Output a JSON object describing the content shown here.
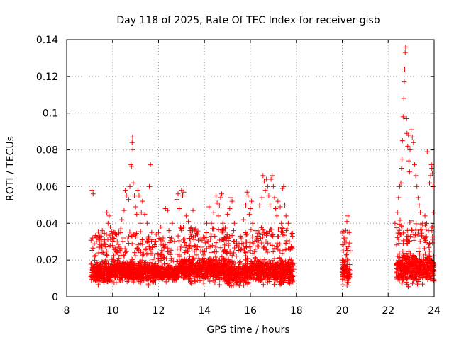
{
  "chart_data": {
    "type": "scatter",
    "title": "Day 118 of 2025, Rate Of TEC Index for receiver gisb",
    "xlabel": "GPS time / hours",
    "ylabel": "ROTI / TECUs",
    "xlim": [
      8,
      24
    ],
    "ylim": [
      0,
      0.14
    ],
    "xticks": [
      8,
      10,
      12,
      14,
      16,
      18,
      20,
      22,
      24
    ],
    "xtick_labels": [
      "8",
      "10",
      "12",
      "14",
      "16",
      "18",
      "20",
      "22",
      "24"
    ],
    "yticks": [
      0,
      0.02,
      0.04,
      0.06,
      0.08,
      0.1,
      0.12,
      0.14
    ],
    "ytick_labels": [
      "0",
      "0.02",
      "0.04",
      "0.06",
      "0.08",
      "0.1",
      "0.12",
      "0.14"
    ],
    "grid": true,
    "marker": "plus",
    "color": "#ff0000",
    "series": [
      {
        "name": "ROTI",
        "points": [
          [
            9.1,
            0.058
          ],
          [
            9.15,
            0.056
          ],
          [
            9.12,
            0.032
          ],
          [
            9.2,
            0.022
          ],
          [
            9.3,
            0.03
          ],
          [
            9.4,
            0.027
          ],
          [
            9.55,
            0.036
          ],
          [
            9.65,
            0.03
          ],
          [
            9.75,
            0.046
          ],
          [
            9.8,
            0.04
          ],
          [
            9.85,
            0.044
          ],
          [
            9.9,
            0.038
          ],
          [
            10.05,
            0.035
          ],
          [
            10.2,
            0.03
          ],
          [
            10.35,
            0.037
          ],
          [
            10.4,
            0.042
          ],
          [
            10.5,
            0.047
          ],
          [
            10.55,
            0.058
          ],
          [
            10.6,
            0.055
          ],
          [
            10.7,
            0.053
          ],
          [
            10.75,
            0.06
          ],
          [
            10.8,
            0.072
          ],
          [
            10.82,
            0.071
          ],
          [
            10.85,
            0.084
          ],
          [
            10.87,
            0.087
          ],
          [
            10.88,
            0.08
          ],
          [
            10.9,
            0.062
          ],
          [
            10.95,
            0.055
          ],
          [
            11.0,
            0.049
          ],
          [
            11.05,
            0.045
          ],
          [
            11.1,
            0.058
          ],
          [
            11.15,
            0.055
          ],
          [
            11.2,
            0.04
          ],
          [
            11.25,
            0.046
          ],
          [
            11.3,
            0.052
          ],
          [
            11.4,
            0.045
          ],
          [
            11.5,
            0.04
          ],
          [
            11.55,
            0.032
          ],
          [
            11.6,
            0.06
          ],
          [
            11.65,
            0.072
          ],
          [
            11.7,
            0.035
          ],
          [
            11.85,
            0.03
          ],
          [
            12.0,
            0.035
          ],
          [
            12.1,
            0.038
          ],
          [
            12.2,
            0.032
          ],
          [
            12.3,
            0.048
          ],
          [
            12.4,
            0.047
          ],
          [
            12.45,
            0.036
          ],
          [
            12.6,
            0.04
          ],
          [
            12.8,
            0.053
          ],
          [
            12.85,
            0.056
          ],
          [
            12.9,
            0.048
          ],
          [
            13.0,
            0.058
          ],
          [
            13.05,
            0.055
          ],
          [
            13.1,
            0.057
          ],
          [
            13.2,
            0.044
          ],
          [
            13.3,
            0.041
          ],
          [
            13.4,
            0.034
          ],
          [
            13.5,
            0.047
          ],
          [
            13.6,
            0.037
          ],
          [
            13.7,
            0.034
          ],
          [
            13.85,
            0.027
          ],
          [
            14.0,
            0.032
          ],
          [
            14.1,
            0.04
          ],
          [
            14.2,
            0.049
          ],
          [
            14.3,
            0.04
          ],
          [
            14.4,
            0.046
          ],
          [
            14.45,
            0.033
          ],
          [
            14.5,
            0.055
          ],
          [
            14.55,
            0.051
          ],
          [
            14.6,
            0.044
          ],
          [
            14.65,
            0.05
          ],
          [
            14.7,
            0.054
          ],
          [
            14.75,
            0.056
          ],
          [
            14.8,
            0.04
          ],
          [
            14.9,
            0.037
          ],
          [
            15.0,
            0.045
          ],
          [
            15.1,
            0.048
          ],
          [
            15.15,
            0.054
          ],
          [
            15.2,
            0.052
          ],
          [
            15.3,
            0.04
          ],
          [
            15.4,
            0.03
          ],
          [
            15.5,
            0.026
          ],
          [
            15.6,
            0.032
          ],
          [
            15.7,
            0.042
          ],
          [
            15.8,
            0.05
          ],
          [
            15.85,
            0.057
          ],
          [
            15.9,
            0.055
          ],
          [
            15.95,
            0.045
          ],
          [
            16.0,
            0.048
          ],
          [
            16.05,
            0.052
          ],
          [
            16.1,
            0.04
          ],
          [
            16.2,
            0.036
          ],
          [
            16.3,
            0.033
          ],
          [
            16.4,
            0.05
          ],
          [
            16.5,
            0.054
          ],
          [
            16.55,
            0.066
          ],
          [
            16.6,
            0.063
          ],
          [
            16.65,
            0.058
          ],
          [
            16.7,
            0.064
          ],
          [
            16.75,
            0.06
          ],
          [
            16.8,
            0.055
          ],
          [
            16.85,
            0.05
          ],
          [
            16.9,
            0.064
          ],
          [
            16.95,
            0.066
          ],
          [
            17.0,
            0.06
          ],
          [
            17.05,
            0.054
          ],
          [
            17.1,
            0.048
          ],
          [
            17.15,
            0.044
          ],
          [
            17.2,
            0.052
          ],
          [
            17.3,
            0.049
          ],
          [
            17.35,
            0.04
          ],
          [
            17.4,
            0.059
          ],
          [
            17.45,
            0.06
          ],
          [
            17.5,
            0.05
          ],
          [
            17.55,
            0.044
          ],
          [
            17.6,
            0.037
          ],
          [
            17.65,
            0.04
          ],
          [
            17.7,
            0.03
          ],
          [
            17.75,
            0.026
          ],
          [
            17.8,
            0.02
          ],
          [
            17.85,
            0.018
          ],
          [
            17.88,
            0.015
          ],
          [
            20.0,
            0.02
          ],
          [
            20.05,
            0.025
          ],
          [
            20.1,
            0.03
          ],
          [
            20.15,
            0.036
          ],
          [
            20.2,
            0.041
          ],
          [
            20.25,
            0.044
          ],
          [
            20.3,
            0.035
          ],
          [
            20.12,
            0.032
          ],
          [
            22.3,
            0.04
          ],
          [
            22.4,
            0.046
          ],
          [
            22.45,
            0.054
          ],
          [
            22.5,
            0.06
          ],
          [
            22.55,
            0.062
          ],
          [
            22.58,
            0.07
          ],
          [
            22.6,
            0.075
          ],
          [
            22.62,
            0.085
          ],
          [
            22.65,
            0.098
          ],
          [
            22.68,
            0.108
          ],
          [
            22.7,
            0.117
          ],
          [
            22.72,
            0.124
          ],
          [
            22.74,
            0.133
          ],
          [
            22.76,
            0.136
          ],
          [
            22.8,
            0.097
          ],
          [
            22.82,
            0.089
          ],
          [
            22.85,
            0.082
          ],
          [
            22.88,
            0.088
          ],
          [
            22.9,
            0.074
          ],
          [
            22.93,
            0.068
          ],
          [
            22.95,
            0.08
          ],
          [
            23.0,
            0.091
          ],
          [
            23.05,
            0.087
          ],
          [
            23.1,
            0.084
          ],
          [
            23.15,
            0.072
          ],
          [
            23.2,
            0.066
          ],
          [
            23.25,
            0.06
          ],
          [
            23.3,
            0.054
          ],
          [
            23.35,
            0.05
          ],
          [
            23.4,
            0.046
          ],
          [
            23.5,
            0.04
          ],
          [
            23.6,
            0.044
          ],
          [
            23.7,
            0.079
          ],
          [
            23.75,
            0.036
          ],
          [
            23.8,
            0.062
          ],
          [
            23.85,
            0.066
          ],
          [
            23.88,
            0.072
          ],
          [
            23.9,
            0.07
          ],
          [
            23.92,
            0.067
          ],
          [
            23.95,
            0.06
          ],
          [
            23.97,
            0.046
          ]
        ],
        "dense_bands": [
          [
            9.05,
            9.95,
            0.005,
            0.022
          ],
          [
            9.95,
            10.9,
            0.006,
            0.022
          ],
          [
            10.9,
            11.9,
            0.005,
            0.022
          ],
          [
            11.9,
            12.85,
            0.007,
            0.019
          ],
          [
            12.85,
            13.95,
            0.006,
            0.024
          ],
          [
            13.95,
            14.95,
            0.006,
            0.024
          ],
          [
            14.95,
            15.95,
            0.003,
            0.022
          ],
          [
            15.95,
            16.95,
            0.005,
            0.024
          ],
          [
            16.95,
            17.85,
            0.004,
            0.024
          ],
          [
            20.0,
            20.35,
            0.004,
            0.022
          ],
          [
            22.35,
            23.2,
            0.004,
            0.028
          ],
          [
            23.2,
            24.0,
            0.004,
            0.026
          ]
        ]
      }
    ]
  }
}
